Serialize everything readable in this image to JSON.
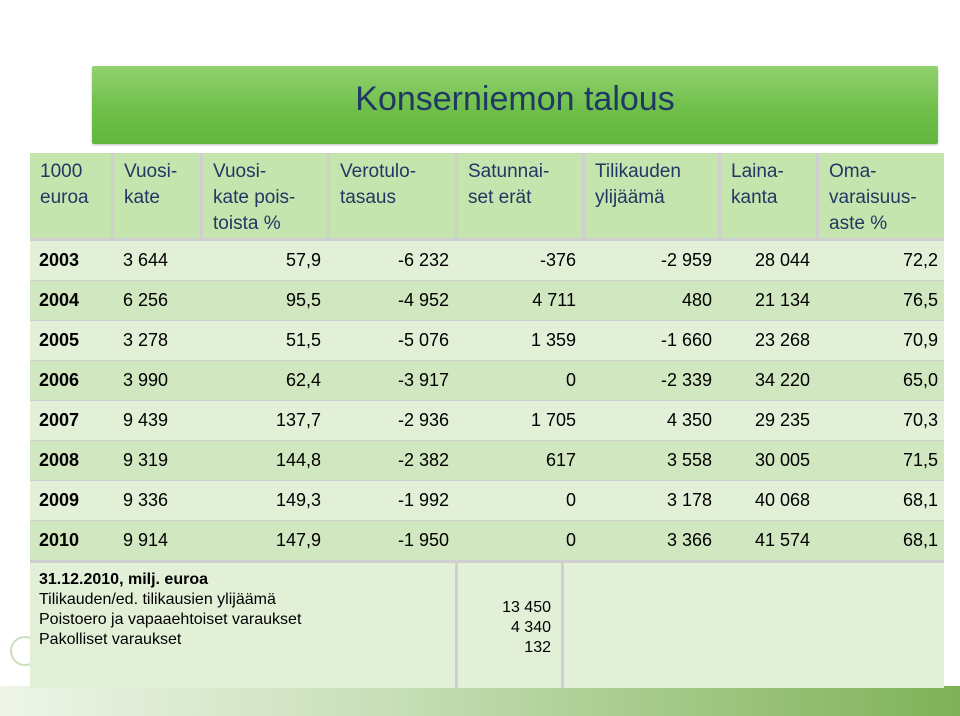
{
  "slide": {
    "title": "Konserniemon talous"
  },
  "table": {
    "headers": [
      "1000\neuroa",
      "Vuosi-\nkate",
      "Vuosi-\nkate pois-\ntoista %",
      "Verotulo-\ntasaus",
      "Satunnai-\nset erät",
      "Tilikauden\nylijäämä",
      "Laina-\nkanta",
      "Oma-\nvaraisuus-\naste %"
    ],
    "rows": [
      [
        "2003",
        "3 644",
        "57,9",
        "-6 232",
        "-376",
        "-2 959",
        "28 044",
        "72,2"
      ],
      [
        "2004",
        "6 256",
        "95,5",
        "-4 952",
        "4 711",
        "480",
        "21 134",
        "76,5"
      ],
      [
        "2005",
        "3 278",
        "51,5",
        "-5 076",
        "1 359",
        "-1 660",
        "23 268",
        "70,9"
      ],
      [
        "2006",
        "3 990",
        "62,4",
        "-3 917",
        "0",
        "-2 339",
        "34 220",
        "65,0"
      ],
      [
        "2007",
        "9 439",
        "137,7",
        "-2 936",
        "1 705",
        "4 350",
        "29 235",
        "70,3"
      ],
      [
        "2008",
        "9 319",
        "144,8",
        "-2 382",
        "617",
        "3 558",
        "30 005",
        "71,5"
      ],
      [
        "2009",
        "9 336",
        "149,3",
        "-1 992",
        "0",
        "3 178",
        "40 068",
        "68,1"
      ],
      [
        "2010",
        "9 914",
        "147,9",
        "-1 950",
        "0",
        "3 366",
        "41 574",
        "68,1"
      ]
    ]
  },
  "footer": {
    "heading": "31.12.2010, milj. euroa",
    "lines": [
      "Tilikauden/ed. tilikausien ylijäämä",
      "Poistoero ja vapaaehtoiset varaukset",
      "Pakolliset varaukset"
    ],
    "values": [
      "13 450",
      "4 340",
      "132"
    ]
  }
}
